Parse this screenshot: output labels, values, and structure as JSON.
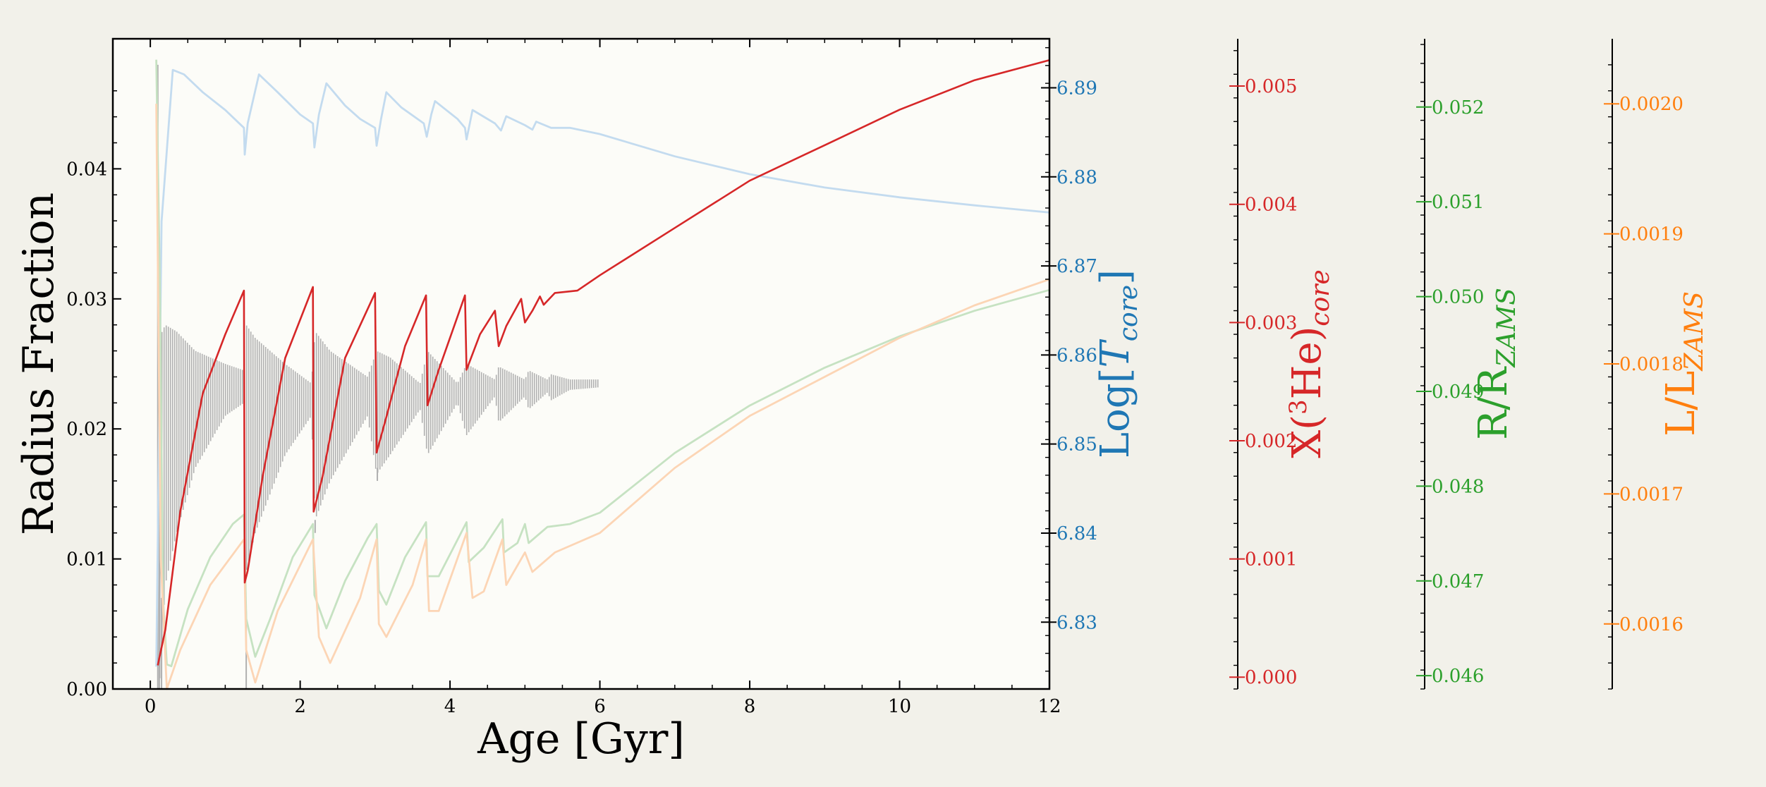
{
  "chart_data": {
    "type": "line",
    "x": {
      "label": "Age [Gyr]",
      "lim": [
        -0.5,
        12
      ],
      "ticks": [
        0,
        2,
        4,
        6,
        8,
        10,
        12
      ],
      "tick_labels": [
        "0",
        "2",
        "4",
        "6",
        "8",
        "10",
        "12"
      ]
    },
    "y_left": {
      "label": "Radius Fraction",
      "lim": [
        0,
        0.05
      ],
      "ticks": [
        0.0,
        0.01,
        0.02,
        0.03,
        0.04
      ],
      "tick_labels": [
        "0.00",
        "0.01",
        "0.02",
        "0.03",
        "0.04"
      ]
    },
    "y_axes_right": [
      {
        "id": "tcore",
        "label_main": "Log[",
        "label_italic": "T",
        "label_sub": "core",
        "label_end": "]",
        "color": "#1f77b4",
        "lim": [
          6.8225,
          6.8955
        ],
        "ticks": [
          6.83,
          6.84,
          6.85,
          6.86,
          6.87,
          6.88,
          6.89
        ],
        "tick_labels": [
          "6.83",
          "6.84",
          "6.85",
          "6.86",
          "6.87",
          "6.88",
          "6.89"
        ]
      },
      {
        "id": "he3",
        "label_main": "X(",
        "label_sup": "3",
        "label_mid": "He)",
        "label_sub": "core",
        "color": "#d62728",
        "lim": [
          -0.0001,
          0.0054
        ],
        "ticks": [
          0.0,
          0.001,
          0.002,
          0.003,
          0.004,
          0.005
        ],
        "tick_labels": [
          "0.000",
          "0.001",
          "0.002",
          "0.003",
          "0.004",
          "0.005"
        ]
      },
      {
        "id": "radius",
        "label_main": "R/R",
        "label_sub": "ZAMS",
        "color": "#2ca02c",
        "lim": [
          0.04586,
          0.05272
        ],
        "ticks": [
          0.046,
          0.047,
          0.048,
          0.049,
          0.05,
          0.051,
          0.052
        ],
        "tick_labels": [
          "0.046",
          "0.047",
          "0.048",
          "0.049",
          "0.050",
          "0.051",
          "0.052"
        ]
      },
      {
        "id": "lum",
        "label_main": "L/L",
        "label_sub": "ZAMS",
        "color": "#ff7f0e",
        "lim": [
          0.00155,
          0.00205
        ],
        "ticks": [
          0.0016,
          0.0017,
          0.0018,
          0.0019,
          0.002
        ],
        "tick_labels": [
          "0.0016",
          "0.0017",
          "0.0018",
          "0.0019",
          "0.0020"
        ]
      }
    ],
    "series": [
      {
        "axis": "tcore",
        "color": "#c3dbef",
        "points": [
          [
            0.08,
            6.825
          ],
          [
            0.15,
            6.875
          ],
          [
            0.3,
            6.892
          ],
          [
            0.45,
            6.8915
          ],
          [
            0.7,
            6.8895
          ],
          [
            1.0,
            6.8875
          ],
          [
            1.25,
            6.8855
          ],
          [
            1.26,
            6.8825
          ],
          [
            1.3,
            6.886
          ],
          [
            1.45,
            6.8915
          ],
          [
            1.7,
            6.8895
          ],
          [
            2.0,
            6.887
          ],
          [
            2.17,
            6.886
          ],
          [
            2.19,
            6.8833
          ],
          [
            2.25,
            6.887
          ],
          [
            2.35,
            6.8905
          ],
          [
            2.6,
            6.888
          ],
          [
            2.8,
            6.8865
          ],
          [
            3.0,
            6.8855
          ],
          [
            3.02,
            6.8835
          ],
          [
            3.08,
            6.8865
          ],
          [
            3.15,
            6.8895
          ],
          [
            3.35,
            6.8878
          ],
          [
            3.65,
            6.886
          ],
          [
            3.69,
            6.8845
          ],
          [
            3.75,
            6.887
          ],
          [
            3.8,
            6.8885
          ],
          [
            4.1,
            6.8865
          ],
          [
            4.2,
            6.8855
          ],
          [
            4.22,
            6.8842
          ],
          [
            4.3,
            6.8875
          ],
          [
            4.6,
            6.886
          ],
          [
            4.68,
            6.8852
          ],
          [
            4.75,
            6.8868
          ],
          [
            5.0,
            6.8858
          ],
          [
            5.1,
            6.8853
          ],
          [
            5.15,
            6.8862
          ],
          [
            5.35,
            6.8855
          ],
          [
            5.6,
            6.8855
          ],
          [
            6.0,
            6.8848
          ],
          [
            7.0,
            6.8823
          ],
          [
            8.0,
            6.8803
          ],
          [
            9.0,
            6.8788
          ],
          [
            10.0,
            6.8777
          ],
          [
            11.0,
            6.8768
          ],
          [
            12.0,
            6.876
          ]
        ]
      },
      {
        "axis": "radius",
        "color": "#c6e2c2",
        "points": [
          [
            0.08,
            0.0525
          ],
          [
            0.13,
            0.05
          ],
          [
            0.17,
            0.0468
          ],
          [
            0.22,
            0.04612
          ],
          [
            0.28,
            0.0461
          ],
          [
            0.5,
            0.0467
          ],
          [
            0.8,
            0.04725
          ],
          [
            1.1,
            0.0476
          ],
          [
            1.25,
            0.0477
          ],
          [
            1.28,
            0.0466
          ],
          [
            1.4,
            0.0462
          ],
          [
            1.6,
            0.0466
          ],
          [
            1.9,
            0.04725
          ],
          [
            2.17,
            0.0476
          ],
          [
            2.19,
            0.04685
          ],
          [
            2.35,
            0.0465
          ],
          [
            2.6,
            0.047
          ],
          [
            2.9,
            0.04745
          ],
          [
            3.02,
            0.0476
          ],
          [
            3.05,
            0.0469
          ],
          [
            3.15,
            0.04675
          ],
          [
            3.4,
            0.04725
          ],
          [
            3.68,
            0.04762
          ],
          [
            3.7,
            0.04705
          ],
          [
            3.85,
            0.04705
          ],
          [
            4.22,
            0.04762
          ],
          [
            4.25,
            0.0472
          ],
          [
            4.45,
            0.04735
          ],
          [
            4.7,
            0.04765
          ],
          [
            4.72,
            0.0473
          ],
          [
            4.9,
            0.0474
          ],
          [
            5.0,
            0.0476
          ],
          [
            5.05,
            0.0474
          ],
          [
            5.3,
            0.04757
          ],
          [
            5.6,
            0.0476
          ],
          [
            6.0,
            0.04772
          ],
          [
            7.0,
            0.04835
          ],
          [
            8.0,
            0.04885
          ],
          [
            9.0,
            0.04925
          ],
          [
            10.0,
            0.04958
          ],
          [
            11.0,
            0.04985
          ],
          [
            12.0,
            0.05007
          ]
        ]
      },
      {
        "axis": "lum",
        "color": "#fcd5b5",
        "points": [
          [
            0.08,
            0.002
          ],
          [
            0.14,
            0.00165
          ],
          [
            0.22,
            0.00155
          ],
          [
            0.4,
            0.00158
          ],
          [
            0.8,
            0.00163
          ],
          [
            1.25,
            0.001665
          ],
          [
            1.28,
            0.00158
          ],
          [
            1.4,
            0.001555
          ],
          [
            1.7,
            0.00161
          ],
          [
            2.17,
            0.001665
          ],
          [
            2.25,
            0.00159
          ],
          [
            2.4,
            0.00157
          ],
          [
            2.8,
            0.00162
          ],
          [
            3.02,
            0.001665
          ],
          [
            3.05,
            0.0016
          ],
          [
            3.15,
            0.00159
          ],
          [
            3.5,
            0.00163
          ],
          [
            3.68,
            0.001665
          ],
          [
            3.72,
            0.00161
          ],
          [
            3.85,
            0.00161
          ],
          [
            4.22,
            0.00167
          ],
          [
            4.3,
            0.00162
          ],
          [
            4.45,
            0.001625
          ],
          [
            4.7,
            0.001665
          ],
          [
            4.75,
            0.00163
          ],
          [
            5.0,
            0.001655
          ],
          [
            5.1,
            0.00164
          ],
          [
            5.4,
            0.001655
          ],
          [
            6.0,
            0.00167
          ],
          [
            7.0,
            0.00172
          ],
          [
            8.0,
            0.00176
          ],
          [
            9.0,
            0.00179
          ],
          [
            10.0,
            0.00182
          ],
          [
            11.0,
            0.001845
          ],
          [
            12.0,
            0.001865
          ]
        ]
      },
      {
        "axis": "he3",
        "color": "#d62728",
        "points": [
          [
            0.1,
            0.0001
          ],
          [
            0.2,
            0.0004
          ],
          [
            0.4,
            0.0014
          ],
          [
            0.7,
            0.0024
          ],
          [
            1.0,
            0.0029
          ],
          [
            1.25,
            0.00327
          ],
          [
            1.26,
            0.0008
          ],
          [
            1.3,
            0.0009
          ],
          [
            1.5,
            0.0017
          ],
          [
            1.8,
            0.0027
          ],
          [
            2.17,
            0.0033
          ],
          [
            2.18,
            0.0014
          ],
          [
            2.3,
            0.0017
          ],
          [
            2.6,
            0.0027
          ],
          [
            3.0,
            0.00325
          ],
          [
            3.02,
            0.0019
          ],
          [
            3.15,
            0.0022
          ],
          [
            3.4,
            0.0028
          ],
          [
            3.68,
            0.00323
          ],
          [
            3.7,
            0.0023
          ],
          [
            3.85,
            0.0026
          ],
          [
            4.2,
            0.00323
          ],
          [
            4.22,
            0.0026
          ],
          [
            4.4,
            0.0029
          ],
          [
            4.6,
            0.0031
          ],
          [
            4.65,
            0.0028
          ],
          [
            4.75,
            0.00297
          ],
          [
            4.95,
            0.0032
          ],
          [
            5.0,
            0.003
          ],
          [
            5.1,
            0.0031
          ],
          [
            5.2,
            0.00322
          ],
          [
            5.25,
            0.00315
          ],
          [
            5.4,
            0.00325
          ],
          [
            5.7,
            0.00327
          ],
          [
            6.0,
            0.0034
          ],
          [
            7.0,
            0.0038
          ],
          [
            8.0,
            0.0042
          ],
          [
            9.0,
            0.0045
          ],
          [
            10.0,
            0.0048
          ],
          [
            11.0,
            0.00505
          ],
          [
            12.0,
            0.00522
          ]
        ]
      }
    ],
    "bands": {
      "axis": "left",
      "color": "#b0b0b0",
      "envelope": [
        [
          0.1,
          0.0,
          0.0
        ],
        [
          0.12,
          0.0,
          0.027
        ],
        [
          0.2,
          0.008,
          0.028
        ],
        [
          0.35,
          0.012,
          0.0275
        ],
        [
          0.6,
          0.017,
          0.026
        ],
        [
          1.0,
          0.021,
          0.025
        ],
        [
          1.25,
          0.022,
          0.0245
        ],
        [
          1.28,
          0.009,
          0.028
        ],
        [
          1.4,
          0.012,
          0.027
        ],
        [
          1.8,
          0.018,
          0.025
        ],
        [
          2.15,
          0.021,
          0.0235
        ],
        [
          2.2,
          0.013,
          0.0275
        ],
        [
          2.4,
          0.016,
          0.026
        ],
        [
          2.9,
          0.021,
          0.024
        ],
        [
          3.02,
          0.0165,
          0.026
        ],
        [
          3.2,
          0.018,
          0.0255
        ],
        [
          3.6,
          0.0215,
          0.0235
        ],
        [
          3.7,
          0.018,
          0.026
        ],
        [
          4.1,
          0.022,
          0.0235
        ],
        [
          4.22,
          0.0195,
          0.025
        ],
        [
          4.6,
          0.0225,
          0.0238
        ],
        [
          4.65,
          0.0205,
          0.0248
        ],
        [
          5.0,
          0.0225,
          0.0238
        ],
        [
          5.05,
          0.0215,
          0.0245
        ],
        [
          5.3,
          0.0228,
          0.0238
        ],
        [
          5.35,
          0.0222,
          0.0242
        ],
        [
          5.6,
          0.023,
          0.0238
        ],
        [
          6.0,
          0.0232,
          0.0238
        ]
      ]
    },
    "spikes": [
      [
        0.1,
        0.0,
        0.048
      ],
      [
        0.12,
        0.0,
        0.02
      ],
      [
        0.15,
        0.0,
        0.007
      ],
      [
        1.28,
        0.0,
        0.006
      ],
      [
        2.2,
        0.012,
        0.013
      ],
      [
        3.03,
        0.016,
        0.017
      ]
    ]
  }
}
